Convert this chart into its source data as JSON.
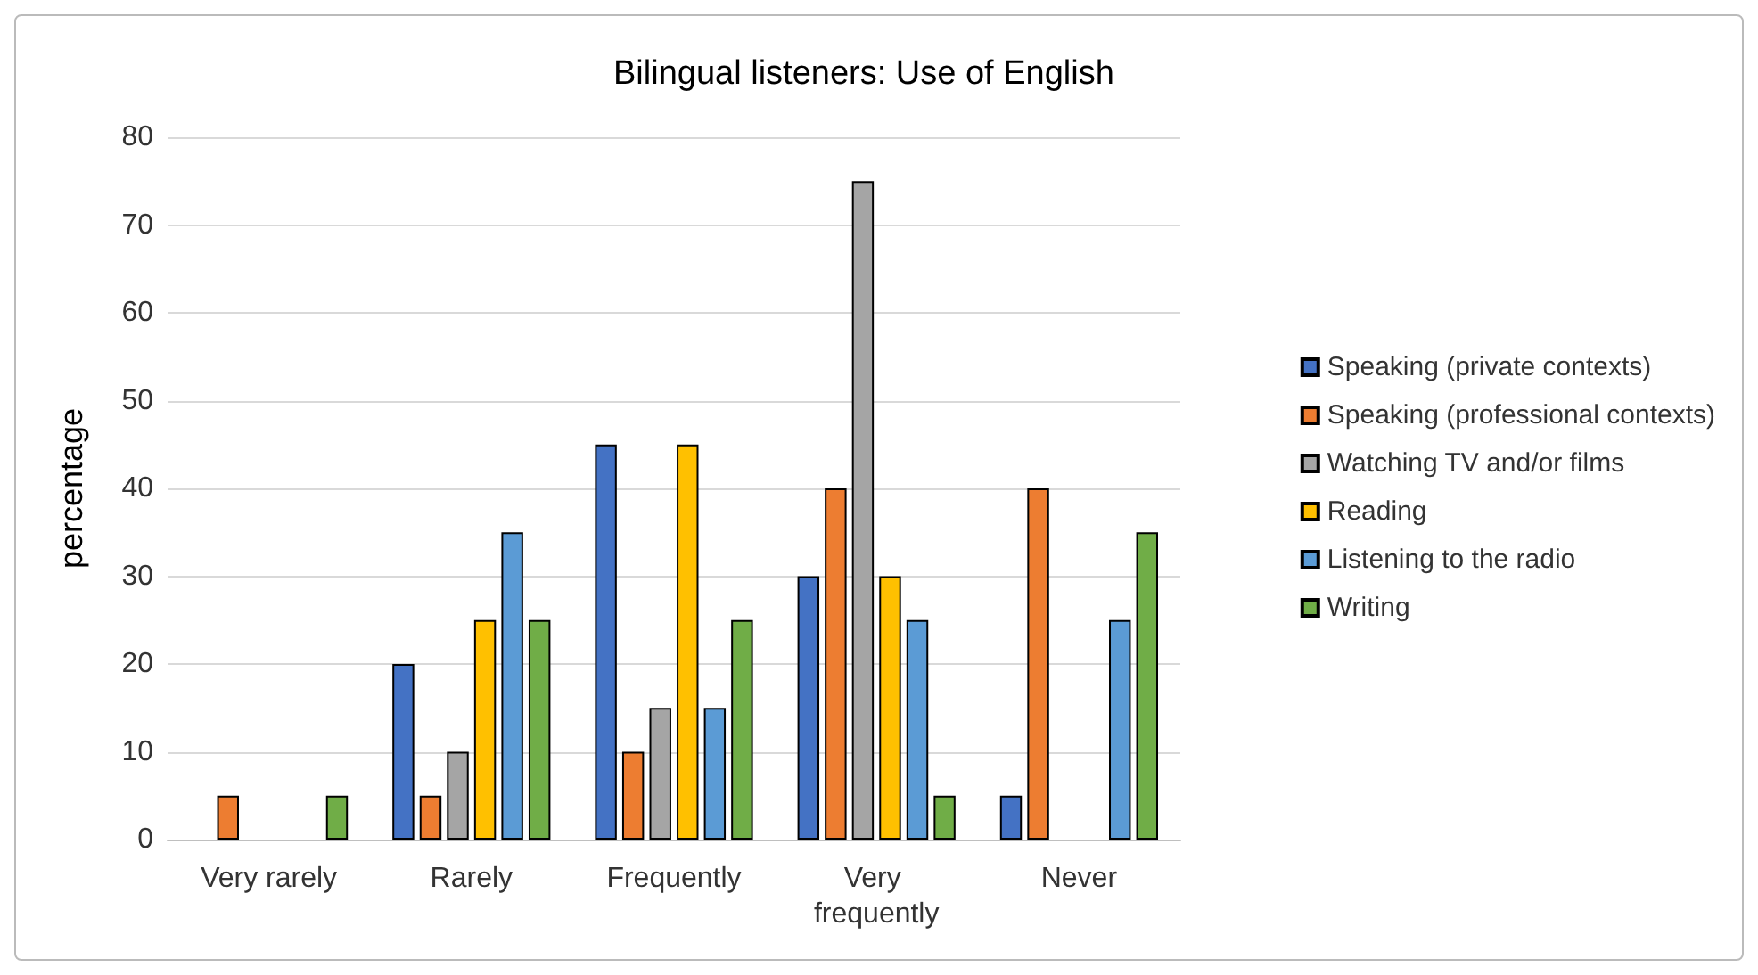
{
  "chart_data": {
    "type": "bar",
    "title": "Bilingual listeners: Use of English",
    "ylabel": "percentage",
    "categories": [
      "Very rarely",
      "Rarely",
      "Frequently",
      "Very frequently",
      "Never"
    ],
    "series": [
      {
        "name": "Speaking (private contexts)",
        "color": "#4472c4",
        "values": [
          0,
          20,
          45,
          30,
          5
        ]
      },
      {
        "name": "Speaking (professional contexts)",
        "color": "#ed7d31",
        "values": [
          5,
          5,
          10,
          40,
          40
        ]
      },
      {
        "name": "Watching TV and/or films",
        "color": "#a5a5a5",
        "values": [
          0,
          10,
          15,
          75,
          0
        ]
      },
      {
        "name": "Reading",
        "color": "#ffc000",
        "values": [
          0,
          25,
          45,
          30,
          0
        ]
      },
      {
        "name": "Listening to the radio",
        "color": "#5b9bd5",
        "values": [
          0,
          35,
          15,
          25,
          25
        ]
      },
      {
        "name": "Writing",
        "color": "#70ad47",
        "values": [
          5,
          25,
          25,
          5,
          35
        ]
      }
    ],
    "ylim": [
      0,
      80
    ],
    "yticks": [
      0,
      10,
      20,
      30,
      40,
      50,
      60,
      70,
      80
    ],
    "grid": "y",
    "legend": "right"
  }
}
